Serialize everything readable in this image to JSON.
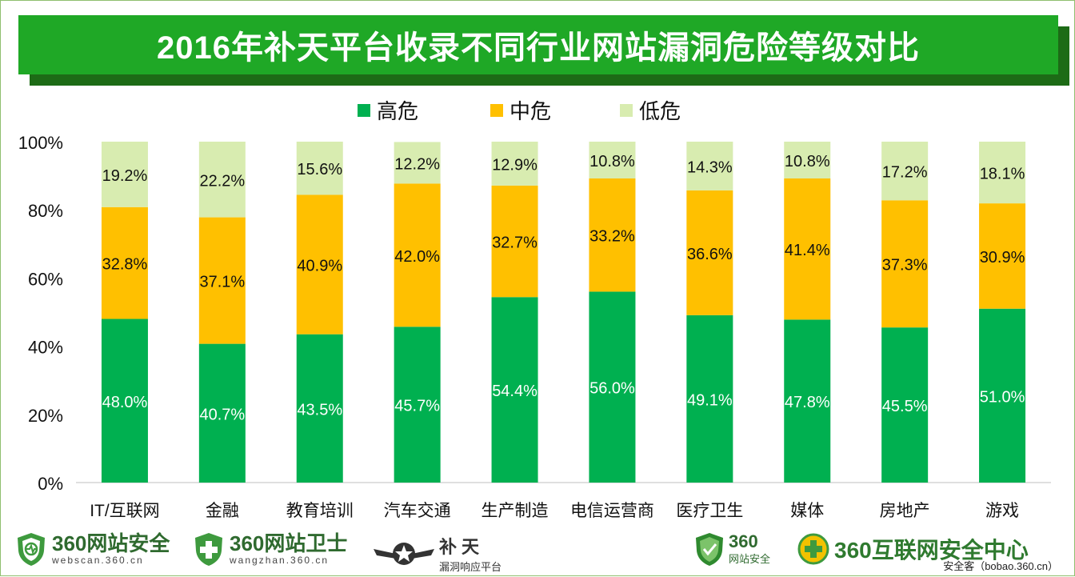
{
  "title": "2016年补天平台收录不同行业网站漏洞危险等级对比",
  "colors": {
    "high": "#00b050",
    "mid": "#ffc000",
    "low": "#d8ecb0",
    "title_bg": "#1fa826"
  },
  "legend": [
    {
      "label": "高危",
      "color": "#00b050"
    },
    {
      "label": "中危",
      "color": "#ffc000"
    },
    {
      "label": "低危",
      "color": "#d8ecb0"
    }
  ],
  "chart_data": {
    "type": "bar",
    "stacked": true,
    "title": "2016年补天平台收录不同行业网站漏洞危险等级对比",
    "categories": [
      "IT/互联网",
      "金融",
      "教育培训",
      "汽车交通",
      "生产制造",
      "电信运营商",
      "医疗卫生",
      "媒体",
      "房地产",
      "游戏"
    ],
    "series": [
      {
        "name": "高危",
        "values": [
          48.0,
          40.7,
          43.5,
          45.7,
          54.4,
          56.0,
          49.1,
          47.8,
          45.5,
          51.0
        ]
      },
      {
        "name": "中危",
        "values": [
          32.8,
          37.1,
          40.9,
          42.0,
          32.7,
          33.2,
          36.6,
          41.4,
          37.3,
          30.9
        ]
      },
      {
        "name": "低危",
        "values": [
          19.2,
          22.2,
          15.6,
          12.2,
          12.9,
          10.8,
          14.3,
          10.8,
          17.2,
          18.1
        ]
      }
    ],
    "value_labels": [
      [
        "48.0%",
        "40.7%",
        "43.5%",
        "45.7%",
        "54.4%",
        "56.0%",
        "49.1%",
        "47.8%",
        "45.5%",
        "51.0%"
      ],
      [
        "32.8%",
        "37.1%",
        "40.9%",
        "42.0%",
        "32.7%",
        "33.2%",
        "36.6%",
        "41.4%",
        "37.3%",
        "30.9%"
      ],
      [
        "19.2%",
        "22.2%",
        "15.6%",
        "12.2%",
        "12.9%",
        "10.8%",
        "14.3%",
        "10.8%",
        "17.2%",
        "18.1%"
      ]
    ],
    "yticks": [
      "0%",
      "20%",
      "40%",
      "60%",
      "80%",
      "100%"
    ],
    "ylim": [
      0,
      100
    ],
    "legend_position": "top-center"
  },
  "footer": {
    "logo1": {
      "name": "360网站安全",
      "url": "webscan.360.cn"
    },
    "logo2": {
      "name": "360网站卫士",
      "url": "wangzhan.360.cn"
    },
    "logo3": {
      "name": "补天",
      "sub": "漏洞响应平台"
    },
    "logo4": {
      "name": "360",
      "sub": "网站安全"
    },
    "logo5": {
      "name": "360互联网安全中心"
    },
    "credit": "安全客（bobao.360.cn）"
  }
}
